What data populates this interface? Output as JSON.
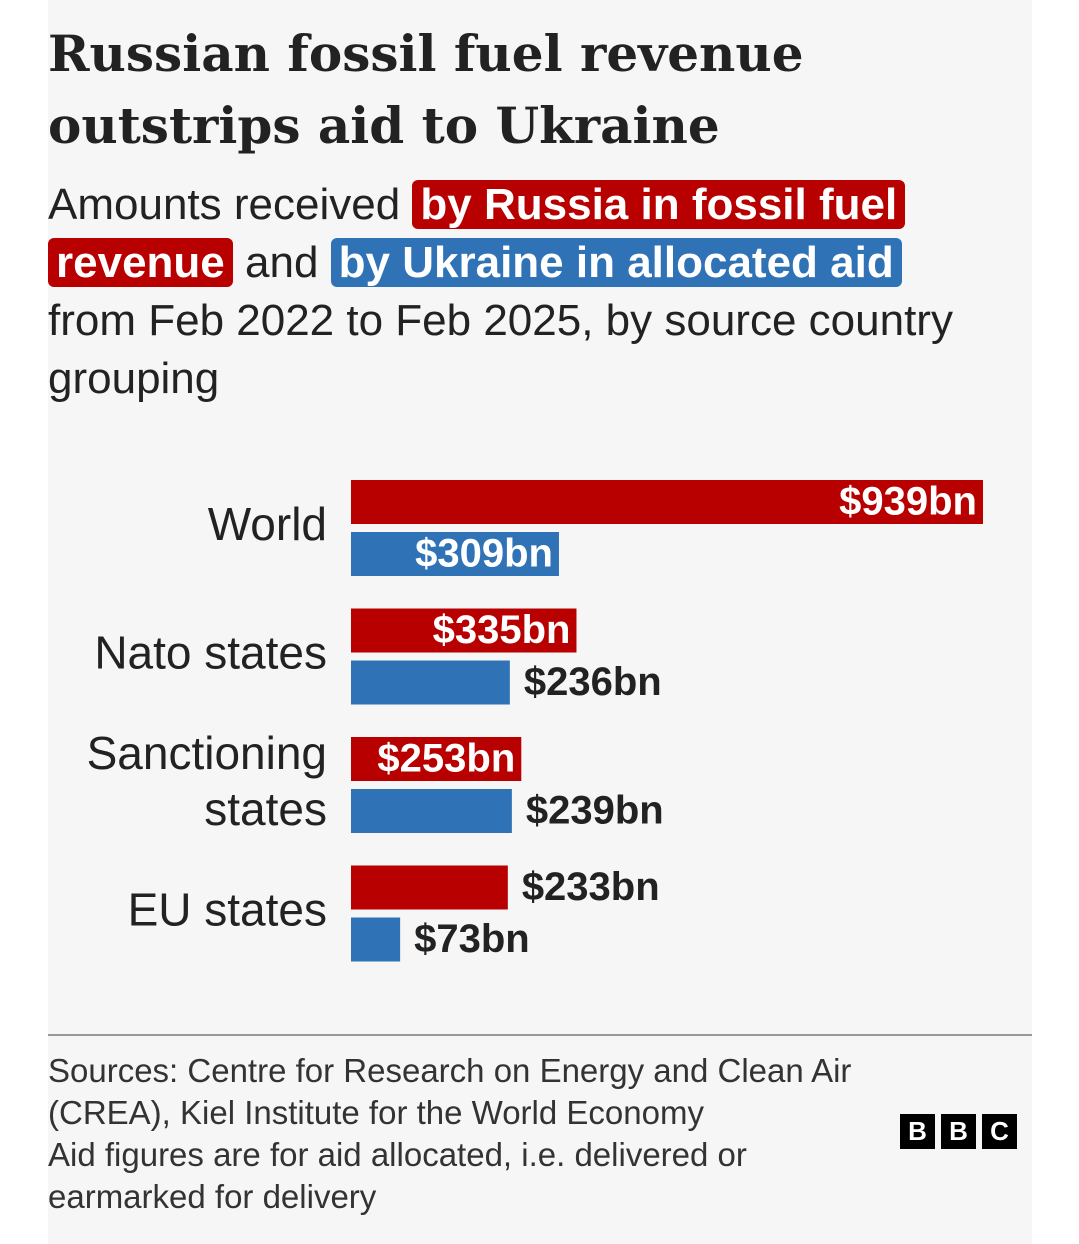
{
  "chart_data": {
    "type": "bar",
    "orientation": "horizontal",
    "title": "Russian fossil fuel revenue outstrips aid to Ukraine",
    "subtitle": [
      "Amounts received",
      "and",
      "from Feb 2022 to Feb 2025, by source country grouping"
    ],
    "categories": [
      "World",
      "Nato states",
      "Sanctioning states",
      "EU states"
    ],
    "series": [
      {
        "name": "by Russia in fossil fuel revenue",
        "color": "#b80000",
        "values": [
          939,
          335,
          253,
          233
        ],
        "value_labels": [
          "$939bn",
          "$335bn",
          "$253bn",
          "$233bn"
        ]
      },
      {
        "name": "by Ukraine in allocated aid",
        "color": "#2f72b6",
        "values": [
          309,
          236,
          239,
          73
        ],
        "value_labels": [
          "$309bn",
          "$236bn",
          "$239bn",
          "$73bn"
        ]
      }
    ],
    "xlim": [
      0,
      939
    ],
    "footnotes": [
      "Sources: Centre for Research on Energy and Clean Air (CREA), Kiel Institute for the World Economy",
      "Aid figures are for aid allocated, i.e. delivered or earmarked for delivery"
    ],
    "logo": [
      "B",
      "B",
      "C"
    ]
  }
}
